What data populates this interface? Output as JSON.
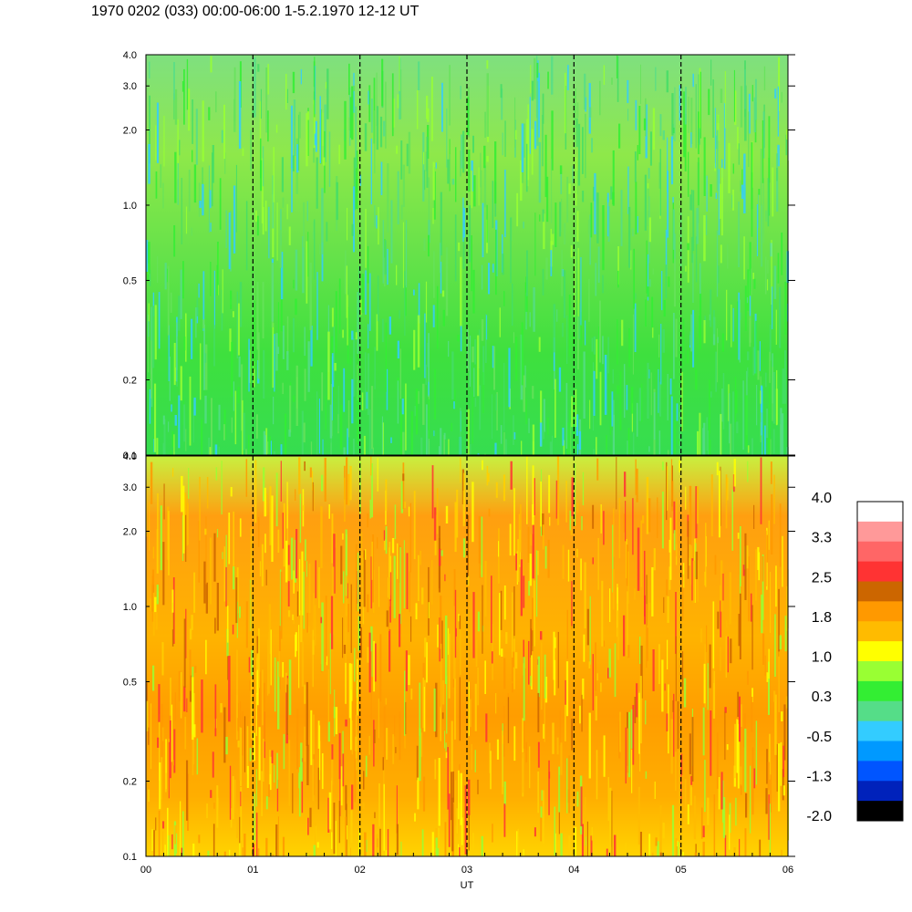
{
  "title": "1970 0202 (033) 00:00-06:00 1-5.2.1970  12-12 UT",
  "chart_data": [
    {
      "type": "heatmap",
      "panel": "upper",
      "x_label": "",
      "y_scale": "log",
      "ylim": [
        0.1,
        4.0
      ],
      "yticks": [
        "0.1",
        "0.2",
        "0.5",
        "1.0",
        "2.0",
        "3.0",
        "4.0"
      ],
      "hour_markers": [
        1,
        2,
        3,
        4,
        5
      ],
      "dominant_levels": [
        "green",
        "yellow-green",
        "light-green"
      ]
    },
    {
      "type": "heatmap",
      "panel": "lower",
      "x_label": "UT",
      "xlim": [
        0,
        6
      ],
      "xticks": [
        "00",
        "01",
        "02",
        "03",
        "04",
        "05",
        "06"
      ],
      "y_scale": "log",
      "ylim": [
        0.1,
        4.0
      ],
      "yticks": [
        "0.1",
        "0.2",
        "0.5",
        "1.0",
        "2.0",
        "3.0",
        "4.0"
      ],
      "hour_markers": [
        1,
        2,
        3,
        4,
        5
      ],
      "dominant_levels": [
        "orange",
        "light-orange",
        "yellow"
      ]
    }
  ],
  "colorbar": {
    "labels": [
      "4.0",
      "3.3",
      "2.5",
      "1.8",
      "1.0",
      "0.3",
      "-0.5",
      "-1.3",
      "-2.0"
    ],
    "colors": [
      "#ffffff",
      "#ff9999",
      "#ff6666",
      "#ff3333",
      "#cc6600",
      "#ff9900",
      "#ffbb00",
      "#ffff00",
      "#99ff33",
      "#33ee33",
      "#55dd88",
      "#33ccff",
      "#0099ff",
      "#0055ff",
      "#0022bb",
      "#000000"
    ]
  }
}
